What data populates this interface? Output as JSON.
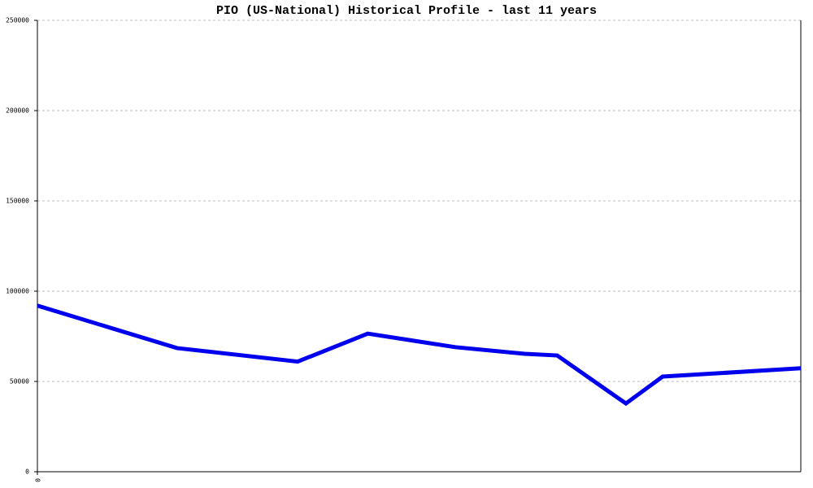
{
  "chart_data": {
    "type": "line",
    "title": "PIO (US-National) Historical Profile - last 11 years",
    "x": [
      0,
      2.01,
      3.75,
      4.76,
      6.02,
      7.02,
      7.49,
      8.48,
      9.01,
      11
    ],
    "series": [
      {
        "color": "#0000ee",
        "values": [
          92000,
          68500,
          61000,
          76500,
          69000,
          65300,
          64400,
          37800,
          52700,
          57300
        ]
      }
    ],
    "xlim": [
      0,
      11
    ],
    "xticks": [
      0
    ],
    "ylim": [
      0,
      250000
    ],
    "yticks": [
      0,
      50000,
      100000,
      150000,
      200000,
      250000
    ],
    "grid": true
  }
}
